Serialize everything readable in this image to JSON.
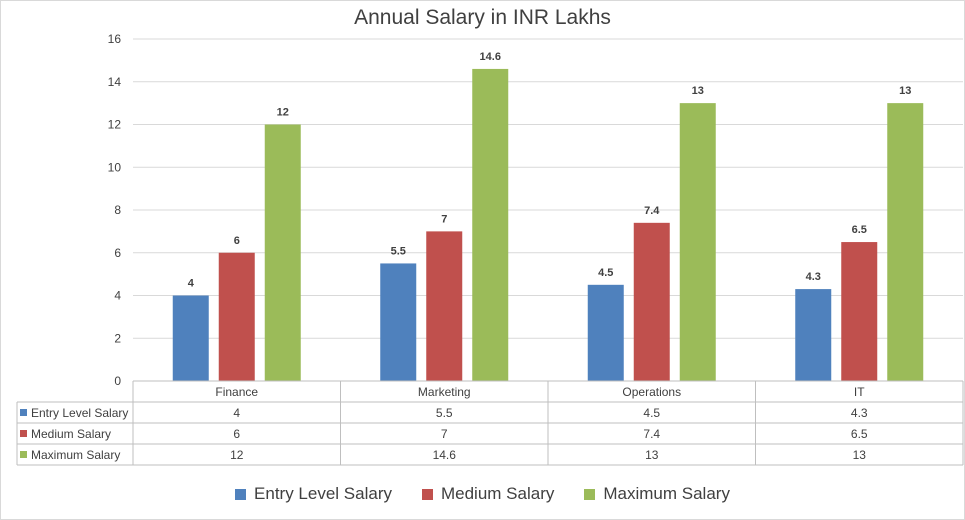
{
  "chart_data": {
    "type": "bar",
    "title": "Annual Salary in INR Lakhs",
    "categories": [
      "Finance",
      "Marketing",
      "Operations",
      "IT"
    ],
    "series": [
      {
        "name": "Entry Level Salary",
        "values": [
          4,
          5.5,
          4.5,
          4.3
        ],
        "color": "#4f81bd"
      },
      {
        "name": "Medium Salary",
        "values": [
          6,
          7,
          7.4,
          6.5
        ],
        "color": "#c0504d"
      },
      {
        "name": "Maximum Salary",
        "values": [
          12,
          14.6,
          13,
          13
        ],
        "color": "#9bbb59"
      }
    ],
    "ylim": [
      0,
      16
    ],
    "yticks": [
      0,
      2,
      4,
      6,
      8,
      10,
      12,
      14,
      16
    ],
    "xlabel": "",
    "ylabel": "",
    "grid": true,
    "legend_position": "bottom",
    "data_table": true
  }
}
